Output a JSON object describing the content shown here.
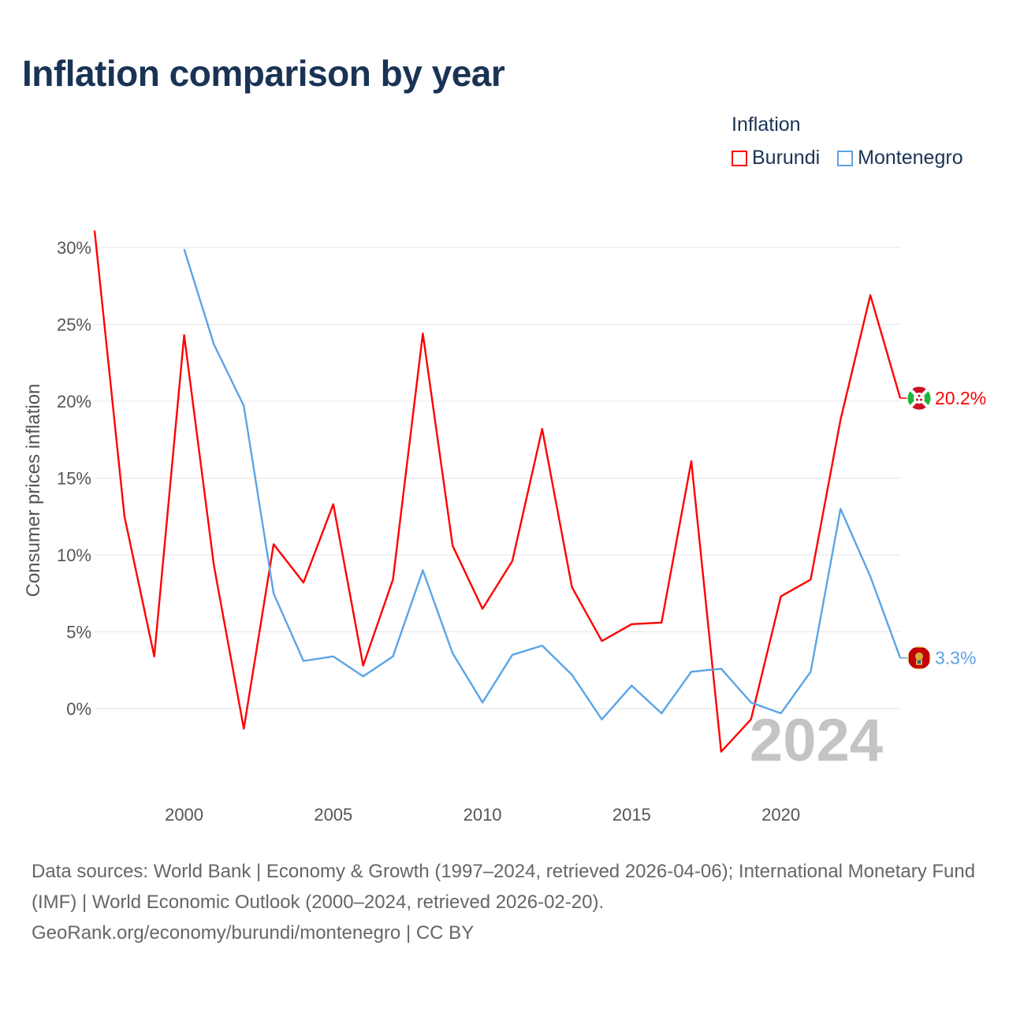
{
  "title": "Inflation comparison by year",
  "legend": {
    "title": "Inflation",
    "items": [
      {
        "label": "Burundi",
        "color": "#ff0000"
      },
      {
        "label": "Montenegro",
        "color": "#5ba4e6"
      }
    ]
  },
  "watermark_year": "2024",
  "footer": "Data sources: World Bank | Economy & Growth (1997–2024, retrieved 2026-04-06); International Monetary Fund (IMF) | World Economic Outlook (2000–2024, retrieved 2026-02-20). GeoRank.org/economy/burundi/montenegro | CC BY",
  "chart_data": {
    "type": "line",
    "title": "Inflation comparison by year",
    "xlabel": "",
    "ylabel": "Consumer prices inflation",
    "xlim": [
      1997,
      2024
    ],
    "ylim": [
      -5,
      31
    ],
    "xticks": [
      2000,
      2005,
      2010,
      2015,
      2020
    ],
    "yticks": [
      0,
      5,
      10,
      15,
      20,
      25,
      30
    ],
    "ytick_labels": [
      "0%",
      "5%",
      "10%",
      "15%",
      "20%",
      "25%",
      "30%"
    ],
    "xtick_labels": [
      "2000",
      "2005",
      "2010",
      "2015",
      "2020"
    ],
    "series": [
      {
        "name": "Burundi",
        "color": "#ff0000",
        "end_label": "20.2%",
        "flag": "burundi",
        "x": [
          1997,
          1998,
          1999,
          2000,
          2001,
          2002,
          2003,
          2004,
          2005,
          2006,
          2007,
          2008,
          2009,
          2010,
          2011,
          2012,
          2013,
          2014,
          2015,
          2016,
          2017,
          2018,
          2019,
          2020,
          2021,
          2022,
          2023,
          2024
        ],
        "values": [
          31.1,
          12.5,
          3.4,
          24.3,
          9.3,
          -1.3,
          10.7,
          8.2,
          13.3,
          2.8,
          8.4,
          24.4,
          10.6,
          6.5,
          9.6,
          18.2,
          7.9,
          4.4,
          5.5,
          5.6,
          16.1,
          -2.8,
          -0.7,
          7.3,
          8.4,
          18.8,
          26.9,
          20.2
        ]
      },
      {
        "name": "Montenegro",
        "color": "#5ba4e6",
        "end_label": "3.3%",
        "flag": "montenegro",
        "x": [
          2000,
          2001,
          2002,
          2003,
          2004,
          2005,
          2006,
          2007,
          2008,
          2009,
          2010,
          2011,
          2012,
          2013,
          2014,
          2015,
          2016,
          2017,
          2018,
          2019,
          2020,
          2021,
          2022,
          2023,
          2024
        ],
        "values": [
          29.9,
          23.7,
          19.7,
          7.5,
          3.1,
          3.4,
          2.1,
          3.4,
          9.0,
          3.6,
          0.4,
          3.5,
          4.1,
          2.2,
          -0.7,
          1.5,
          -0.3,
          2.4,
          2.6,
          0.4,
          -0.3,
          2.4,
          13.0,
          8.6,
          3.3
        ]
      }
    ]
  }
}
